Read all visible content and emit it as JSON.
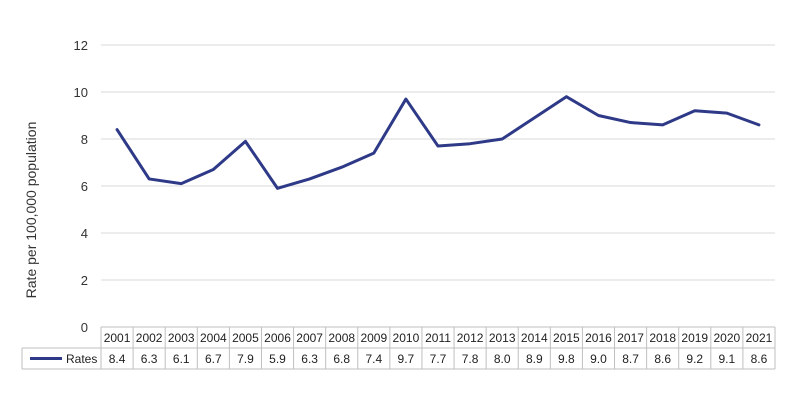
{
  "chart_data": {
    "type": "line",
    "ylabel": "Rate per 100,000 population",
    "ylim": [
      0,
      12
    ],
    "yticks": [
      "0",
      "2",
      "4",
      "6",
      "8",
      "10",
      "12"
    ],
    "grid": true,
    "categories": [
      "2001",
      "2002",
      "2003",
      "2004",
      "2005",
      "2006",
      "2007",
      "2008",
      "2009",
      "2010",
      "2011",
      "2012",
      "2013",
      "2014",
      "2015",
      "2016",
      "2017",
      "2018",
      "2019",
      "2020",
      "2021"
    ],
    "series": [
      {
        "name": "Rates",
        "color": "#2e3a87",
        "values": [
          8.4,
          6.3,
          6.1,
          6.7,
          7.9,
          5.9,
          6.3,
          6.8,
          7.4,
          9.7,
          7.7,
          7.8,
          8.0,
          8.9,
          9.8,
          9.0,
          8.7,
          8.6,
          9.2,
          9.1,
          8.6
        ],
        "value_labels": [
          "8.4",
          "6.3",
          "6.1",
          "6.7",
          "7.9",
          "5.9",
          "6.3",
          "6.8",
          "7.4",
          "9.7",
          "7.7",
          "7.8",
          "8.0",
          "8.9",
          "9.8",
          "9.0",
          "8.7",
          "8.6",
          "9.2",
          "9.1",
          "8.6"
        ]
      }
    ],
    "legend": "data-table-left",
    "data_table": true
  }
}
